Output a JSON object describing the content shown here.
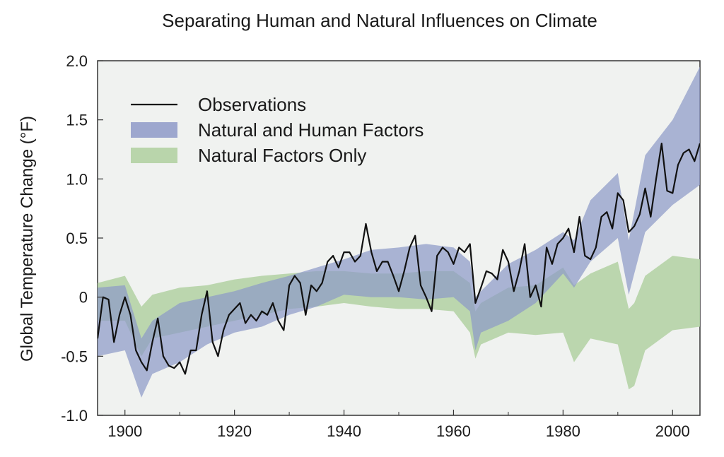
{
  "chart_data": {
    "type": "line",
    "title": "Separating Human and Natural Influences on Climate",
    "xlabel": "",
    "ylabel": "Global Temperature Change (°F)",
    "xlim": [
      1895,
      2005
    ],
    "ylim": [
      -1.0,
      2.0
    ],
    "x_ticks": [
      1900,
      1920,
      1940,
      1960,
      1980,
      2000
    ],
    "y_ticks": [
      2.0,
      1.5,
      1.0,
      0.5,
      0,
      -0.5,
      -1.0
    ],
    "y_tick_labels": [
      "2.0",
      "1.5",
      "1.0",
      "0.5",
      "0",
      "-0.5",
      "-1.0"
    ],
    "grid": false,
    "legend_position": "top-left",
    "colors": {
      "plot_bg": "#f0f2f0",
      "observations": "#111111",
      "human_band": "#8e9ac8",
      "natural_band": "#b5d3a6"
    },
    "legend": [
      {
        "label": "Observations",
        "kind": "line"
      },
      {
        "label": "Natural and Human Factors",
        "kind": "band_human"
      },
      {
        "label": "Natural Factors Only",
        "kind": "band_natural"
      }
    ],
    "series": [
      {
        "name": "Observations",
        "x": [
          1895,
          1896,
          1897,
          1898,
          1899,
          1900,
          1901,
          1902,
          1903,
          1904,
          1905,
          1906,
          1907,
          1908,
          1909,
          1910,
          1911,
          1912,
          1913,
          1914,
          1915,
          1916,
          1917,
          1918,
          1919,
          1920,
          1921,
          1922,
          1923,
          1924,
          1925,
          1926,
          1927,
          1928,
          1929,
          1930,
          1931,
          1932,
          1933,
          1934,
          1935,
          1936,
          1937,
          1938,
          1939,
          1940,
          1941,
          1942,
          1943,
          1944,
          1945,
          1946,
          1947,
          1948,
          1949,
          1950,
          1951,
          1952,
          1953,
          1954,
          1955,
          1956,
          1957,
          1958,
          1959,
          1960,
          1961,
          1962,
          1963,
          1964,
          1965,
          1966,
          1967,
          1968,
          1969,
          1970,
          1971,
          1972,
          1973,
          1974,
          1975,
          1976,
          1977,
          1978,
          1979,
          1980,
          1981,
          1982,
          1983,
          1984,
          1985,
          1986,
          1987,
          1988,
          1989,
          1990,
          1991,
          1992,
          1993,
          1994,
          1995,
          1996,
          1997,
          1998,
          1999,
          2000,
          2001,
          2002,
          2003,
          2004,
          2005
        ],
        "y": [
          -0.35,
          0.0,
          -0.02,
          -0.38,
          -0.15,
          0.0,
          -0.15,
          -0.45,
          -0.55,
          -0.62,
          -0.38,
          -0.18,
          -0.5,
          -0.58,
          -0.6,
          -0.55,
          -0.65,
          -0.45,
          -0.45,
          -0.15,
          0.05,
          -0.38,
          -0.5,
          -0.28,
          -0.15,
          -0.1,
          -0.05,
          -0.22,
          -0.15,
          -0.2,
          -0.12,
          -0.15,
          -0.05,
          -0.2,
          -0.28,
          0.1,
          0.18,
          0.12,
          -0.15,
          0.1,
          0.05,
          0.12,
          0.3,
          0.35,
          0.25,
          0.38,
          0.38,
          0.3,
          0.35,
          0.62,
          0.38,
          0.22,
          0.3,
          0.3,
          0.18,
          0.05,
          0.22,
          0.42,
          0.52,
          0.1,
          0.0,
          -0.12,
          0.35,
          0.42,
          0.38,
          0.28,
          0.42,
          0.38,
          0.45,
          -0.05,
          0.08,
          0.22,
          0.2,
          0.15,
          0.4,
          0.3,
          0.05,
          0.22,
          0.45,
          0.0,
          0.1,
          -0.08,
          0.42,
          0.28,
          0.45,
          0.5,
          0.58,
          0.38,
          0.68,
          0.35,
          0.32,
          0.42,
          0.68,
          0.72,
          0.58,
          0.88,
          0.82,
          0.55,
          0.6,
          0.7,
          0.92,
          0.68,
          1.0,
          1.3,
          0.9,
          0.88,
          1.12,
          1.22,
          1.25,
          1.15,
          1.3
        ]
      },
      {
        "name": "Natural and Human Factors",
        "x": [
          1895,
          1900,
          1903,
          1905,
          1910,
          1915,
          1920,
          1925,
          1930,
          1935,
          1940,
          1945,
          1950,
          1955,
          1960,
          1963,
          1964,
          1965,
          1970,
          1975,
          1980,
          1982,
          1985,
          1990,
          1992,
          1995,
          2000,
          2005
        ],
        "lower": [
          -0.5,
          -0.45,
          -0.85,
          -0.65,
          -0.55,
          -0.4,
          -0.3,
          -0.25,
          -0.15,
          -0.08,
          0.02,
          0.0,
          0.0,
          -0.02,
          0.0,
          -0.12,
          -0.45,
          -0.3,
          -0.2,
          -0.05,
          0.2,
          0.08,
          0.3,
          0.5,
          0.02,
          0.55,
          0.78,
          0.95
        ],
        "upper": [
          0.08,
          0.1,
          -0.35,
          -0.2,
          -0.05,
          0.0,
          0.05,
          0.12,
          0.18,
          0.25,
          0.32,
          0.4,
          0.42,
          0.45,
          0.42,
          0.3,
          0.0,
          0.05,
          0.28,
          0.4,
          0.55,
          0.48,
          0.82,
          1.05,
          0.48,
          1.2,
          1.5,
          1.95
        ]
      },
      {
        "name": "Natural Factors Only",
        "x": [
          1895,
          1900,
          1903,
          1905,
          1910,
          1915,
          1920,
          1925,
          1930,
          1935,
          1940,
          1945,
          1950,
          1955,
          1960,
          1963,
          1964,
          1965,
          1970,
          1975,
          1980,
          1982,
          1985,
          1990,
          1992,
          1993,
          1995,
          2000,
          2005
        ],
        "lower": [
          -0.2,
          -0.2,
          -0.5,
          -0.35,
          -0.3,
          -0.25,
          -0.2,
          -0.15,
          -0.1,
          -0.08,
          -0.05,
          -0.08,
          -0.1,
          -0.1,
          -0.12,
          -0.3,
          -0.52,
          -0.4,
          -0.3,
          -0.32,
          -0.3,
          -0.55,
          -0.35,
          -0.4,
          -0.78,
          -0.75,
          -0.45,
          -0.28,
          -0.25
        ],
        "upper": [
          0.12,
          0.18,
          -0.08,
          0.02,
          0.08,
          0.1,
          0.15,
          0.18,
          0.2,
          0.22,
          0.22,
          0.2,
          0.2,
          0.22,
          0.22,
          0.12,
          -0.12,
          -0.05,
          0.08,
          0.1,
          0.25,
          0.1,
          0.2,
          0.3,
          -0.1,
          -0.05,
          0.18,
          0.35,
          0.32
        ]
      }
    ]
  }
}
